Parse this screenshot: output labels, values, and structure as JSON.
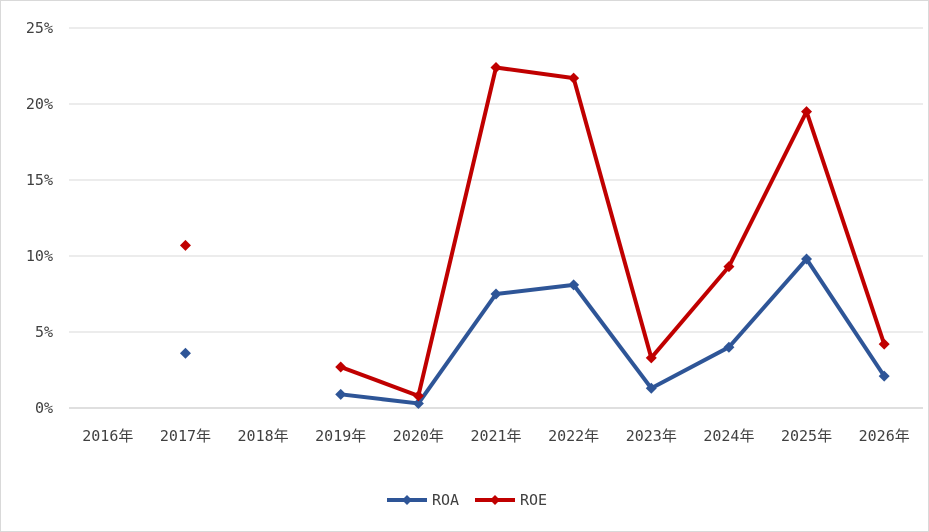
{
  "chart_data": {
    "type": "line",
    "title": "",
    "xlabel": "",
    "ylabel": "",
    "categories": [
      "2016年",
      "2017年",
      "2018年",
      "2019年",
      "2020年",
      "2021年",
      "2022年",
      "2023年",
      "2024年",
      "2025年",
      "2026年"
    ],
    "y_tick_labels": [
      "0%",
      "5%",
      "10%",
      "15%",
      "20%",
      "25%"
    ],
    "ylim": [
      0,
      25
    ],
    "grid": true,
    "legend_position": "bottom",
    "series": [
      {
        "name": "ROA",
        "color": "#2E5597",
        "values": [
          null,
          3.6,
          null,
          0.9,
          0.3,
          7.5,
          8.1,
          1.3,
          4.0,
          9.8,
          2.1
        ]
      },
      {
        "name": "ROE",
        "color": "#C00000",
        "values": [
          null,
          10.7,
          null,
          2.7,
          0.8,
          22.4,
          21.7,
          3.3,
          9.3,
          19.5,
          4.2
        ]
      }
    ]
  }
}
